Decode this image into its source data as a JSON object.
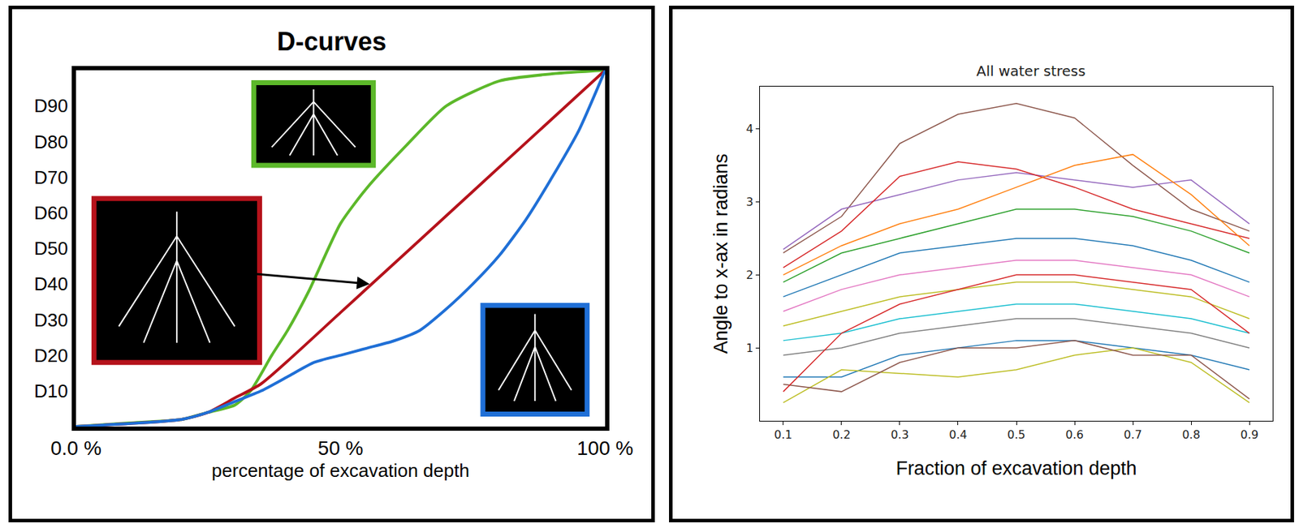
{
  "chart_data": [
    {
      "type": "line",
      "title": "D-curves",
      "x_label": "percentage of excavation depth",
      "xlim": [
        0,
        100
      ],
      "ylim": [
        0,
        100
      ],
      "xticks": [
        {
          "value": 0,
          "label": "0.0 %"
        },
        {
          "value": 50,
          "label": "50 %"
        },
        {
          "value": 100,
          "label": "100 %"
        }
      ],
      "yticks": [
        {
          "value": 10,
          "label": "D10"
        },
        {
          "value": 20,
          "label": "D20"
        },
        {
          "value": 30,
          "label": "D30"
        },
        {
          "value": 40,
          "label": "D40"
        },
        {
          "value": 50,
          "label": "D50"
        },
        {
          "value": 60,
          "label": "D60"
        },
        {
          "value": 70,
          "label": "D70"
        },
        {
          "value": 80,
          "label": "D80"
        },
        {
          "value": 90,
          "label": "D90"
        }
      ],
      "grid": false,
      "series": [
        {
          "color": "#5cb82a",
          "x": [
            0,
            10,
            20,
            25,
            30,
            33,
            37,
            40,
            44,
            50,
            55,
            62.5,
            70,
            80,
            90,
            100
          ],
          "values": [
            0,
            1,
            2,
            4,
            6,
            10,
            20,
            27,
            38,
            57,
            67,
            79,
            90,
            97,
            99,
            100
          ]
        },
        {
          "color": "#b5121b",
          "x": [
            0,
            20,
            25,
            30,
            35,
            50,
            75,
            100
          ],
          "values": [
            0,
            2,
            4,
            8,
            12,
            32,
            66,
            100
          ]
        },
        {
          "color": "#1f6fd6",
          "x": [
            0,
            20,
            25,
            30,
            35,
            40,
            45,
            50,
            55,
            60,
            65,
            70,
            75,
            80,
            85,
            90,
            95,
            100
          ],
          "values": [
            0,
            2,
            4,
            7,
            10,
            14,
            18,
            20,
            22,
            24,
            27,
            33,
            40,
            48,
            58,
            70,
            83,
            100
          ]
        }
      ]
    },
    {
      "type": "line",
      "title": "All water stress",
      "x_label": "Fraction of excavation depth",
      "y_label": "Angle to x-ax in radians",
      "x": [
        0.1,
        0.2,
        0.3,
        0.4,
        0.5,
        0.6,
        0.7,
        0.8,
        0.9
      ],
      "xlim": [
        0.06,
        0.94
      ],
      "ylim": [
        0,
        4.58
      ],
      "xticks": [
        0.1,
        0.2,
        0.3,
        0.4,
        0.5,
        0.6,
        0.7,
        0.8,
        0.9
      ],
      "yticks": [
        1,
        2,
        3,
        4
      ],
      "grid": false,
      "series": [
        {
          "color": "#8c564b",
          "values": [
            2.3,
            2.8,
            3.8,
            4.2,
            4.35,
            4.15,
            3.5,
            2.9,
            2.6
          ]
        },
        {
          "color": "#9467bd",
          "values": [
            2.35,
            2.9,
            3.1,
            3.3,
            3.4,
            3.3,
            3.2,
            3.3,
            2.7
          ]
        },
        {
          "color": "#d62728",
          "values": [
            2.1,
            2.6,
            3.35,
            3.55,
            3.45,
            3.2,
            2.9,
            2.7,
            2.5
          ]
        },
        {
          "color": "#ff7f0e",
          "values": [
            2.0,
            2.4,
            2.7,
            2.9,
            3.2,
            3.5,
            3.65,
            3.1,
            2.4
          ]
        },
        {
          "color": "#2ca02c",
          "values": [
            1.9,
            2.3,
            2.5,
            2.7,
            2.9,
            2.9,
            2.8,
            2.6,
            2.3
          ]
        },
        {
          "color": "#1f77b4",
          "values": [
            1.7,
            2.0,
            2.3,
            2.4,
            2.5,
            2.5,
            2.4,
            2.2,
            1.9
          ]
        },
        {
          "color": "#e377c2",
          "values": [
            1.5,
            1.8,
            2.0,
            2.1,
            2.2,
            2.2,
            2.1,
            2.0,
            1.7
          ]
        },
        {
          "color": "#bcbd22",
          "values": [
            1.3,
            1.5,
            1.7,
            1.8,
            1.9,
            1.9,
            1.8,
            1.7,
            1.4
          ]
        },
        {
          "color": "#17becf",
          "values": [
            1.1,
            1.2,
            1.4,
            1.5,
            1.6,
            1.6,
            1.5,
            1.4,
            1.2
          ]
        },
        {
          "color": "#7f7f7f",
          "values": [
            0.9,
            1.0,
            1.2,
            1.3,
            1.4,
            1.4,
            1.3,
            1.2,
            1.0
          ]
        },
        {
          "color": "#1f77b4",
          "values": [
            0.6,
            0.6,
            0.9,
            1.0,
            1.1,
            1.1,
            1.0,
            0.9,
            0.7
          ]
        },
        {
          "color": "#bcbd22",
          "values": [
            0.25,
            0.7,
            0.65,
            0.6,
            0.7,
            0.9,
            1.0,
            0.8,
            0.25
          ]
        },
        {
          "color": "#8c564b",
          "values": [
            0.5,
            0.4,
            0.8,
            1.0,
            1.0,
            1.1,
            0.9,
            0.9,
            0.3
          ]
        },
        {
          "color": "#d62728",
          "values": [
            0.4,
            1.2,
            1.6,
            1.8,
            2.0,
            2.0,
            1.9,
            1.8,
            1.2
          ]
        }
      ]
    }
  ]
}
